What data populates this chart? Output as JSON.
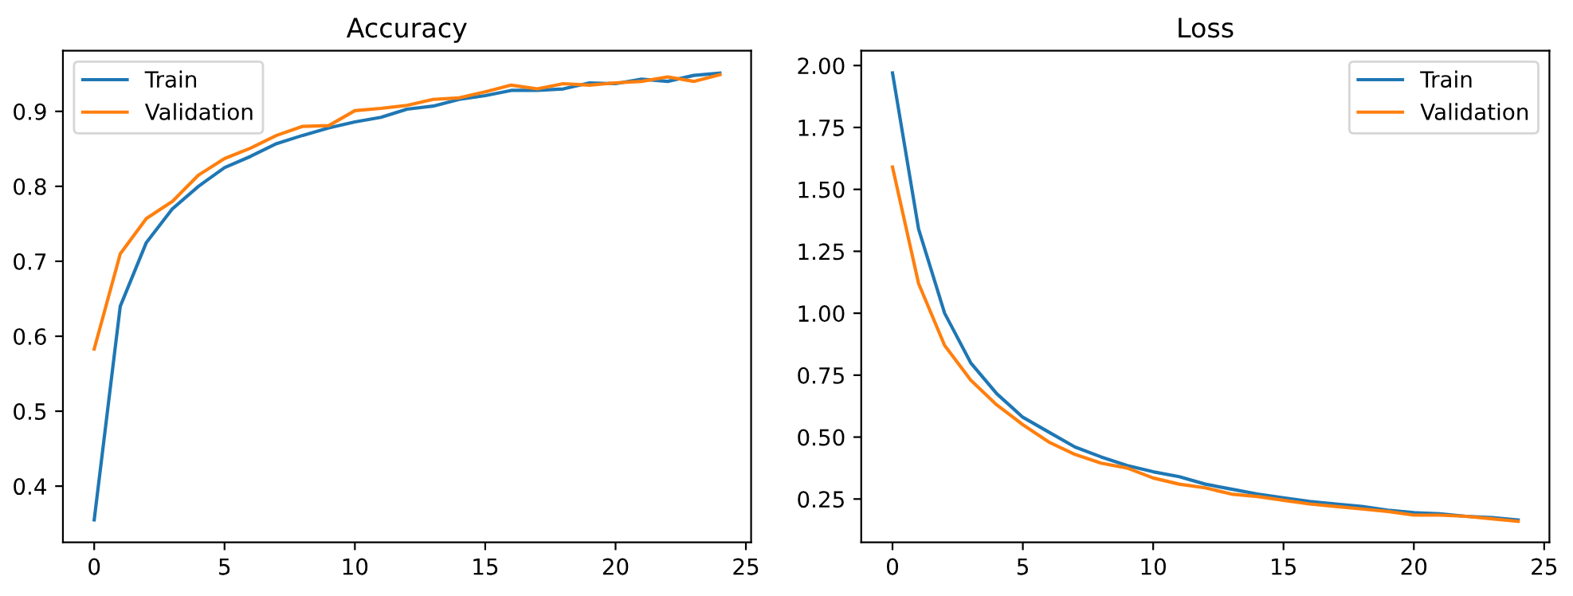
{
  "chart_data": [
    {
      "type": "line",
      "title": "Accuracy",
      "x": [
        0,
        1,
        2,
        3,
        4,
        5,
        6,
        7,
        8,
        9,
        10,
        11,
        12,
        13,
        14,
        15,
        16,
        17,
        18,
        19,
        20,
        21,
        22,
        23,
        24
      ],
      "series": [
        {
          "name": "Train",
          "color": "#1f77b4",
          "values": [
            0.355,
            0.64,
            0.725,
            0.77,
            0.8,
            0.825,
            0.84,
            0.857,
            0.868,
            0.878,
            0.886,
            0.892,
            0.903,
            0.907,
            0.916,
            0.921,
            0.928,
            0.928,
            0.93,
            0.938,
            0.937,
            0.943,
            0.94,
            0.948,
            0.951
          ]
        },
        {
          "name": "Validation",
          "color": "#ff7f0e",
          "values": [
            0.583,
            0.71,
            0.757,
            0.78,
            0.815,
            0.837,
            0.851,
            0.868,
            0.88,
            0.881,
            0.901,
            0.904,
            0.908,
            0.916,
            0.918,
            0.926,
            0.935,
            0.93,
            0.937,
            0.935,
            0.938,
            0.94,
            0.946,
            0.94,
            0.949
          ]
        }
      ],
      "xlim": [
        -1.2,
        25.2
      ],
      "xticks": [
        0,
        5,
        10,
        15,
        20,
        25
      ],
      "ylim": [
        0.325,
        0.981
      ],
      "yticks": [
        0.4,
        0.5,
        0.6,
        0.7,
        0.8,
        0.9
      ],
      "legend": "top left",
      "grid": false,
      "marker": "none",
      "line_style": "solid"
    },
    {
      "type": "line",
      "title": "Loss",
      "x": [
        0,
        1,
        2,
        3,
        4,
        5,
        6,
        7,
        8,
        9,
        10,
        11,
        12,
        13,
        14,
        15,
        16,
        17,
        18,
        19,
        20,
        21,
        22,
        23,
        24
      ],
      "series": [
        {
          "name": "Train",
          "color": "#1f77b4",
          "values": [
            1.97,
            1.34,
            1.0,
            0.8,
            0.675,
            0.58,
            0.52,
            0.46,
            0.42,
            0.385,
            0.36,
            0.34,
            0.31,
            0.29,
            0.27,
            0.255,
            0.24,
            0.23,
            0.22,
            0.205,
            0.195,
            0.19,
            0.18,
            0.175,
            0.165
          ]
        },
        {
          "name": "Validation",
          "color": "#ff7f0e",
          "values": [
            1.59,
            1.12,
            0.87,
            0.73,
            0.63,
            0.55,
            0.48,
            0.43,
            0.395,
            0.375,
            0.335,
            0.31,
            0.295,
            0.27,
            0.26,
            0.245,
            0.23,
            0.22,
            0.21,
            0.2,
            0.185,
            0.185,
            0.18,
            0.17,
            0.16
          ]
        }
      ],
      "xlim": [
        -1.2,
        25.2
      ],
      "xticks": [
        0,
        5,
        10,
        15,
        20,
        25
      ],
      "ylim": [
        0.075,
        2.06
      ],
      "yticks": [
        {
          "value": 0.25,
          "label": "0.25"
        },
        {
          "value": 0.5,
          "label": "0.50"
        },
        {
          "value": 0.75,
          "label": "0.75"
        },
        {
          "value": 1.0,
          "label": "1.00"
        },
        {
          "value": 1.25,
          "label": "1.25"
        },
        {
          "value": 1.5,
          "label": "1.50"
        },
        {
          "value": 1.75,
          "label": "1.75"
        },
        {
          "value": 2.0,
          "label": "2.00"
        }
      ],
      "legend": "top right",
      "grid": false,
      "marker": "none",
      "line_style": "solid"
    }
  ]
}
